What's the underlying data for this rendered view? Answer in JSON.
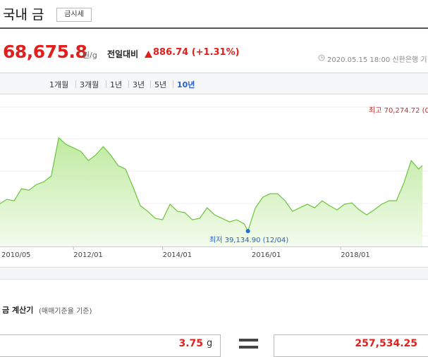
{
  "header": {
    "title": "국내 금",
    "badge": "금시세"
  },
  "price": {
    "value": "68,675.8",
    "unit": "원/g",
    "change_label": "전일대비",
    "change": "886.74 (+1.31%)",
    "updated": "2020.05.15 18:00 신한은행 기"
  },
  "tabs": [
    "1개월",
    "3개월",
    "1년",
    "3년",
    "5년",
    "10년"
  ],
  "chart_data": {
    "type": "line",
    "color": "#6cc43a",
    "annotations": [
      "최고 70,274.72 (0",
      "최저 39,134.90 (12/04)"
    ],
    "x": [
      "2010/05",
      "2010/07",
      "2010/09",
      "2010/11",
      "2011/01",
      "2011/03",
      "2011/05",
      "2011/07",
      "2011/09",
      "2011/11",
      "2012/01",
      "2012/03",
      "2012/05",
      "2012/07",
      "2012/09",
      "2012/11",
      "2013/01",
      "2013/03",
      "2013/05",
      "2013/07",
      "2013/09",
      "2013/11",
      "2014/01",
      "2014/03",
      "2014/05",
      "2014/07",
      "2014/09",
      "2014/11",
      "2015/01",
      "2015/03",
      "2015/05",
      "2015/07",
      "2015/09",
      "2015/11",
      "2015/12",
      "2016/02",
      "2016/04",
      "2016/06",
      "2016/08",
      "2016/10",
      "2016/12",
      "2017/02",
      "2017/04",
      "2017/06",
      "2017/08",
      "2017/10",
      "2017/12",
      "2018/02",
      "2018/04",
      "2018/06",
      "2018/08",
      "2018/10",
      "2018/12",
      "2019/02",
      "2019/04",
      "2019/06",
      "2019/08",
      "2019/10",
      "2019/11"
    ],
    "values": [
      48087,
      49732,
      49262,
      53257,
      52787,
      54667,
      55607,
      57487,
      70274.72,
      68062,
      66887,
      65712,
      62657,
      64537,
      67357,
      64537,
      61012,
      59837,
      53962,
      47617,
      45737,
      43387,
      42917,
      48087,
      45737,
      45267,
      42917,
      43387,
      46912,
      44562,
      43387,
      42212,
      42917,
      41507,
      39134.9,
      46912,
      50437,
      51612,
      51612,
      49262,
      45737,
      46912,
      48087,
      46912,
      49262,
      47617,
      46207,
      48087,
      48557,
      46207,
      44562,
      46207,
      48087,
      49262,
      49262,
      55137,
      62657,
      59837,
      61012
    ],
    "xlim": [
      "2010/05",
      "2019/11"
    ],
    "xticks": [
      "2010/05",
      "2012/01",
      "2014/01",
      "2016/01",
      "2018/01"
    ],
    "ylim": [
      34000,
      81000
    ]
  },
  "calculator": {
    "title": "금 계산기",
    "note": "(매매기준율 기준)",
    "amount": "3.75",
    "amount_unit": "g",
    "result": "257,534.25"
  }
}
